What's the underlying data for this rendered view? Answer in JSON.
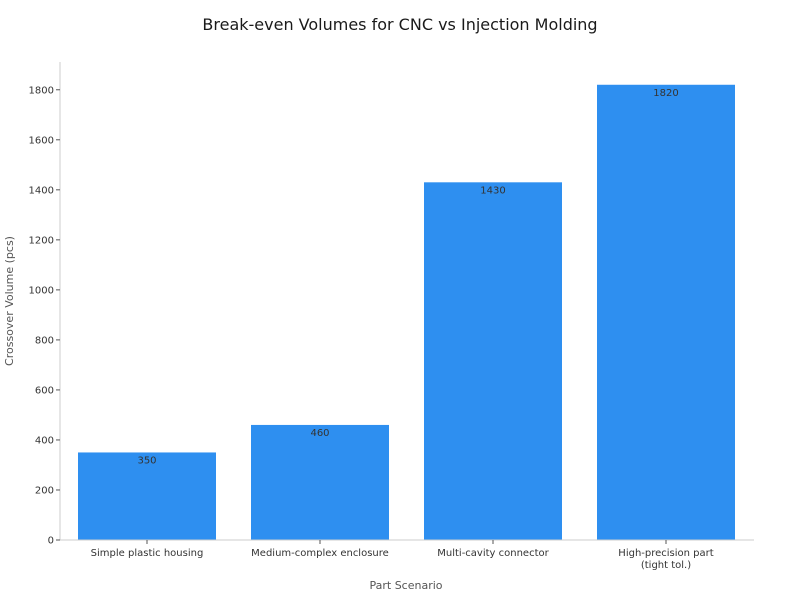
{
  "chart_data": {
    "type": "bar",
    "title": "Break-even Volumes for CNC vs Injection Molding",
    "xlabel": "Part Scenario",
    "ylabel": "Crossover Volume (pcs)",
    "categories": [
      [
        "Simple plastic housing"
      ],
      [
        "Medium-complex enclosure"
      ],
      [
        "Multi-cavity connector"
      ],
      [
        "High-precision part",
        "(tight tol.)"
      ]
    ],
    "values": [
      350,
      460,
      1430,
      1820
    ],
    "data_labels": [
      "350",
      "460",
      "1430",
      "1820"
    ],
    "yticks": [
      0,
      200,
      400,
      600,
      800,
      1000,
      1200,
      1400,
      1600,
      1800
    ],
    "ylim": [
      0,
      1911
    ],
    "bar_color": "#2e8ff0",
    "grid": false,
    "legend": "none"
  }
}
